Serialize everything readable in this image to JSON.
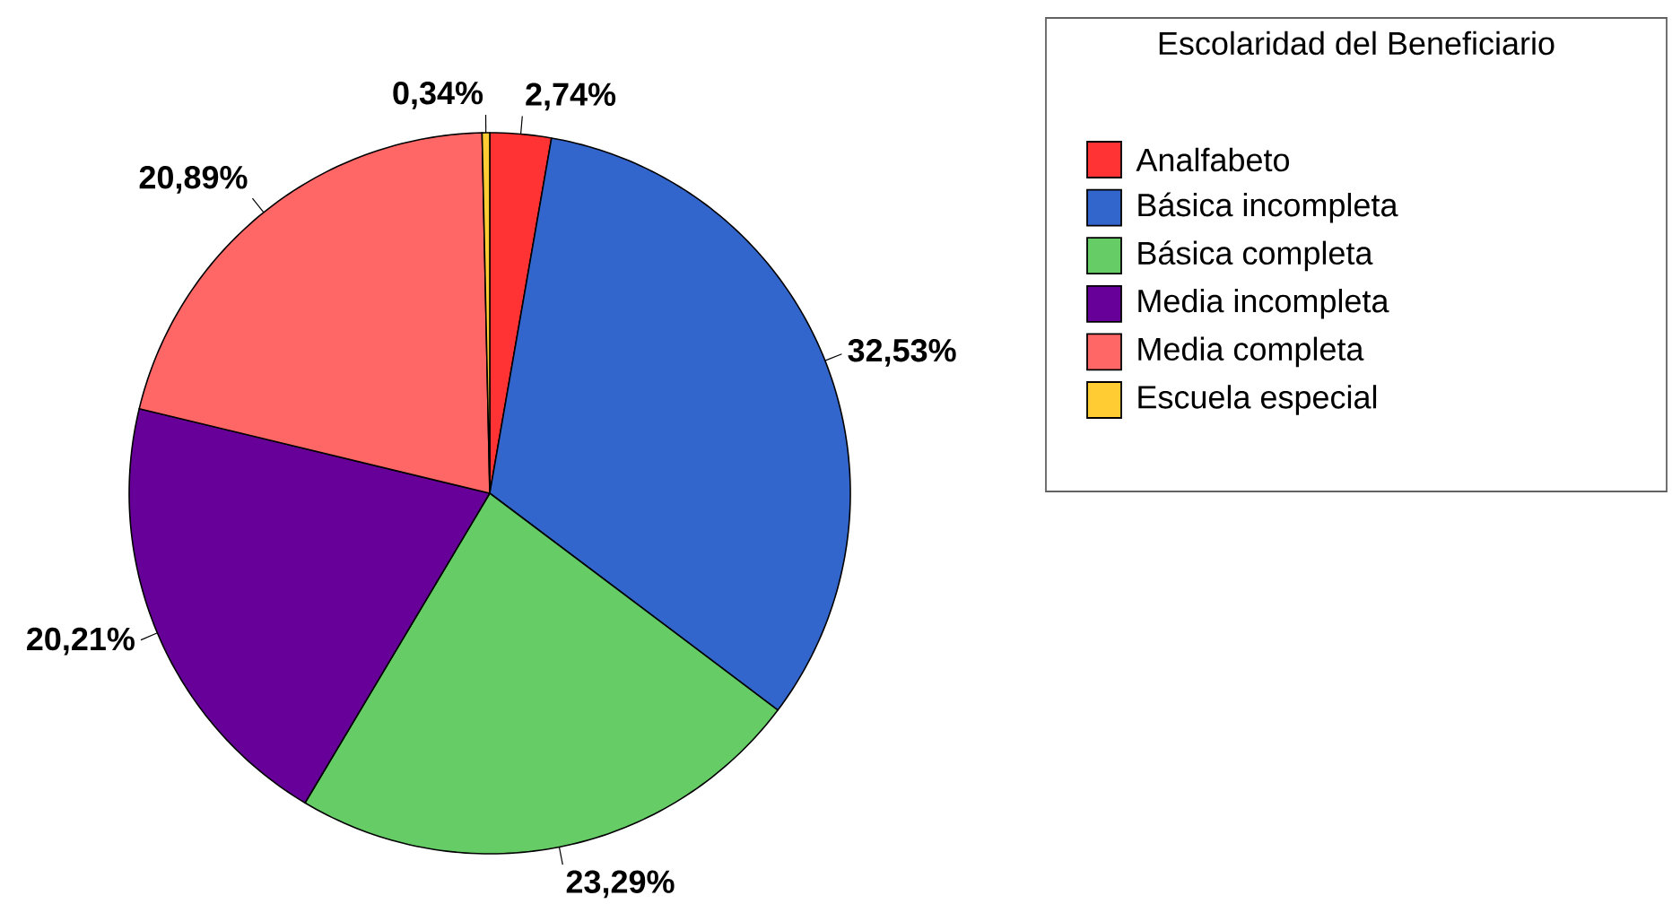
{
  "chart_data": {
    "type": "pie",
    "legend_title": "Escolaridad del Beneficiario",
    "categories": [
      "Analfabeto",
      "Básica incompleta",
      "Básica completa",
      "Media incompleta",
      "Media completa",
      "Escuela especial"
    ],
    "values": [
      2.74,
      32.53,
      23.29,
      20.21,
      20.89,
      0.34
    ],
    "colors": [
      "#ff3333",
      "#3366cc",
      "#66cc66",
      "#660099",
      "#ff6666",
      "#ffcc33"
    ],
    "value_labels": [
      "2,74%",
      "32,53%",
      "23,29%",
      "20,21%",
      "20,89%",
      "0,34%"
    ],
    "legend": "top right"
  }
}
